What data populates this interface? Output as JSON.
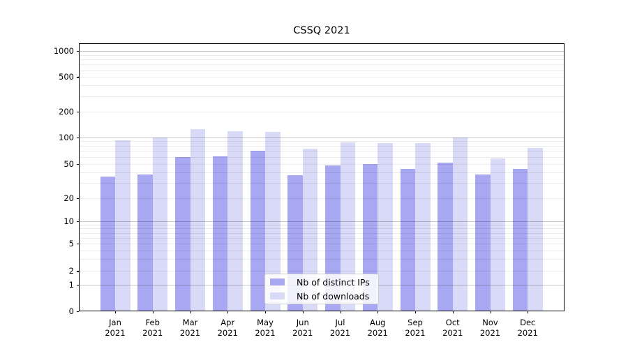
{
  "title": "CSSQ 2021",
  "chart_data": {
    "type": "bar",
    "title": "CSSQ 2021",
    "categories": [
      "Jan",
      "Feb",
      "Mar",
      "Apr",
      "May",
      "Jun",
      "Jul",
      "Aug",
      "Sep",
      "Oct",
      "Nov",
      "Dec"
    ],
    "category_year": "2021",
    "series": [
      {
        "name": "Nb of distinct IPs",
        "color": "#a8a8f2",
        "values": [
          36,
          38,
          60,
          61,
          70,
          37,
          48,
          50,
          44,
          52,
          38,
          44
        ]
      },
      {
        "name": "Nb of downloads",
        "color": "#d9d9f8",
        "values": [
          93,
          99,
          125,
          117,
          115,
          74,
          88,
          85,
          85,
          100,
          58,
          76
        ]
      }
    ],
    "yscale": "symlog",
    "y_ticks": [
      0,
      1,
      2,
      5,
      10,
      20,
      50,
      100,
      200,
      500,
      1000
    ],
    "ylim": [
      0,
      1300
    ],
    "xlabel": "",
    "ylabel": "",
    "grid": "horizontal",
    "legend_position": "lower-center"
  }
}
